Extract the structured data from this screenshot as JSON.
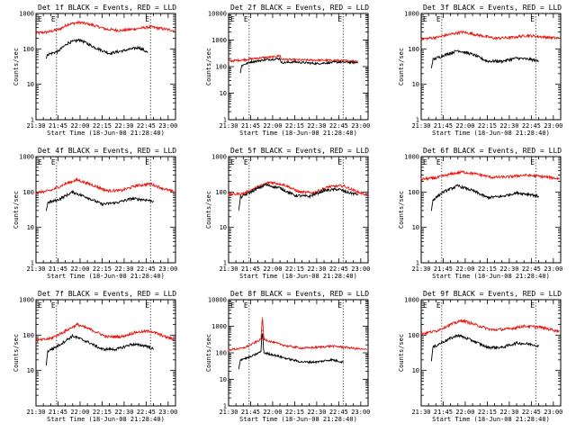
{
  "figure": {
    "xlabel": "Start Time (18-Jun-08 21:28:40)",
    "ylabel": "Counts/sec"
  },
  "colors": {
    "events": "#000000",
    "lld": "#e8130c"
  },
  "chart_data": [
    {
      "type": "line",
      "title": "Det 1f BLACK = Events, RED = LLD",
      "marker": "E",
      "y_log": true,
      "ylim": [
        1,
        1000
      ],
      "yticks": [
        "1",
        "10",
        "100",
        "1000"
      ],
      "xlim": [
        "21:30",
        "23:05"
      ],
      "xticks": [
        "21:30",
        "21:45",
        "22:00",
        "22:15",
        "22:30",
        "22:45",
        "23:00"
      ],
      "vlines": [
        "21:44",
        "22:48"
      ],
      "series": [
        {
          "color": "#e8130c",
          "x": [
            "21:30",
            "21:38",
            "21:46",
            "21:52",
            "22:00",
            "22:08",
            "22:18",
            "22:28",
            "22:38",
            "22:48",
            "22:58",
            "23:04"
          ],
          "y": [
            280,
            300,
            360,
            500,
            560,
            480,
            360,
            330,
            370,
            420,
            360,
            330
          ]
        },
        {
          "color": "#000000",
          "x": [
            "21:37",
            "21:38",
            "21:45",
            "21:52",
            "22:00",
            "22:10",
            "22:20",
            "22:30",
            "22:40",
            "22:46"
          ],
          "y": [
            55,
            70,
            85,
            150,
            180,
            110,
            75,
            90,
            110,
            80
          ]
        }
      ]
    },
    {
      "type": "line",
      "title": "Det 2f BLACK = Events, RED = LLD",
      "marker": "E",
      "y_log": true,
      "ylim": [
        1,
        10000
      ],
      "yticks": [
        "1",
        "10",
        "100",
        "1000",
        "10000"
      ],
      "xlim": [
        "21:30",
        "23:05"
      ],
      "xticks": [
        "21:30",
        "21:45",
        "22:00",
        "22:15",
        "22:30",
        "22:45",
        "23:00"
      ],
      "vlines": [
        "21:44",
        "22:48"
      ],
      "series": [
        {
          "color": "#e8130c",
          "x": [
            "21:30",
            "21:40",
            "21:50",
            "22:00",
            "22:05",
            "22:06",
            "22:15",
            "22:30",
            "22:45",
            "22:58"
          ],
          "y": [
            160,
            180,
            210,
            230,
            260,
            190,
            180,
            175,
            170,
            160
          ]
        },
        {
          "color": "#000000",
          "x": [
            "21:38",
            "21:39",
            "21:45",
            "21:55",
            "22:05",
            "22:06",
            "22:15",
            "22:30",
            "22:45",
            "22:58"
          ],
          "y": [
            60,
            110,
            150,
            180,
            200,
            140,
            150,
            130,
            150,
            140
          ]
        }
      ]
    },
    {
      "type": "line",
      "title": "Det 3f BLACK = Events, RED = LLD",
      "marker": "E",
      "y_log": true,
      "ylim": [
        1,
        1000
      ],
      "yticks": [
        "1",
        "10",
        "100",
        "1000"
      ],
      "xlim": [
        "21:30",
        "23:05"
      ],
      "xticks": [
        "21:30",
        "21:45",
        "22:00",
        "22:15",
        "22:30",
        "22:45",
        "23:00"
      ],
      "vlines": [
        "21:44",
        "22:48"
      ],
      "series": [
        {
          "color": "#e8130c",
          "x": [
            "21:30",
            "21:40",
            "21:50",
            "21:58",
            "22:08",
            "22:20",
            "22:32",
            "22:42",
            "22:52",
            "23:04"
          ],
          "y": [
            190,
            210,
            260,
            300,
            250,
            200,
            210,
            240,
            220,
            200
          ]
        },
        {
          "color": "#000000",
          "x": [
            "21:37",
            "21:38",
            "21:45",
            "21:55",
            "22:05",
            "22:15",
            "22:25",
            "22:35",
            "22:45",
            "22:50"
          ],
          "y": [
            30,
            50,
            65,
            90,
            70,
            45,
            45,
            55,
            50,
            45
          ]
        }
      ]
    },
    {
      "type": "line",
      "title": "Det 4f BLACK = Events, RED = LLD",
      "marker": "E",
      "y_log": true,
      "ylim": [
        1,
        1000
      ],
      "yticks": [
        "1",
        "10",
        "100",
        "1000"
      ],
      "xlim": [
        "21:30",
        "23:05"
      ],
      "xticks": [
        "21:30",
        "21:45",
        "22:00",
        "22:15",
        "22:30",
        "22:45",
        "23:00"
      ],
      "vlines": [
        "21:44",
        "22:48"
      ],
      "series": [
        {
          "color": "#e8130c",
          "x": [
            "21:30",
            "21:40",
            "21:50",
            "21:58",
            "22:08",
            "22:18",
            "22:28",
            "22:38",
            "22:48",
            "22:58",
            "23:04"
          ],
          "y": [
            95,
            110,
            170,
            220,
            160,
            110,
            110,
            150,
            170,
            120,
            100
          ]
        },
        {
          "color": "#000000",
          "x": [
            "21:37",
            "21:38",
            "21:45",
            "21:55",
            "22:05",
            "22:15",
            "22:25",
            "22:35",
            "22:45",
            "22:50"
          ],
          "y": [
            30,
            50,
            60,
            100,
            70,
            45,
            50,
            65,
            60,
            55
          ]
        }
      ]
    },
    {
      "type": "line",
      "title": "Det 5f BLACK = Events, RED = LLD",
      "marker": "E",
      "y_log": true,
      "ylim": [
        1,
        1000
      ],
      "yticks": [
        "1",
        "10",
        "100",
        "1000"
      ],
      "xlim": [
        "21:30",
        "23:05"
      ],
      "xticks": [
        "21:30",
        "21:45",
        "22:00",
        "22:15",
        "22:30",
        "22:45",
        "23:00"
      ],
      "vlines": [
        "21:44",
        "22:48"
      ],
      "series": [
        {
          "color": "#e8130c",
          "x": [
            "21:30",
            "21:40",
            "21:50",
            "21:58",
            "22:08",
            "22:18",
            "22:28",
            "22:38",
            "22:48",
            "22:58",
            "23:04"
          ],
          "y": [
            85,
            90,
            140,
            190,
            160,
            100,
            95,
            140,
            150,
            100,
            85
          ]
        },
        {
          "color": "#000000",
          "x": [
            "21:37",
            "21:38",
            "21:45",
            "21:55",
            "22:05",
            "22:15",
            "22:25",
            "22:35",
            "22:45",
            "22:50",
            "22:58"
          ],
          "y": [
            30,
            70,
            100,
            160,
            130,
            80,
            75,
            110,
            120,
            100,
            85
          ]
        }
      ]
    },
    {
      "type": "line",
      "title": "Det 6f BLACK = Events, RED = LLD",
      "marker": "E",
      "y_log": true,
      "ylim": [
        1,
        1000
      ],
      "yticks": [
        "1",
        "10",
        "100",
        "1000"
      ],
      "xlim": [
        "21:30",
        "23:05"
      ],
      "xticks": [
        "21:30",
        "21:45",
        "22:00",
        "22:15",
        "22:30",
        "22:45",
        "23:00"
      ],
      "vlines": [
        "21:44",
        "22:48"
      ],
      "series": [
        {
          "color": "#e8130c",
          "x": [
            "21:30",
            "21:40",
            "21:50",
            "21:58",
            "22:08",
            "22:18",
            "22:30",
            "22:40",
            "22:50",
            "23:04"
          ],
          "y": [
            230,
            250,
            320,
            370,
            320,
            260,
            270,
            300,
            280,
            240
          ]
        },
        {
          "color": "#000000",
          "x": [
            "21:37",
            "21:38",
            "21:45",
            "21:55",
            "22:05",
            "22:15",
            "22:25",
            "22:35",
            "22:45",
            "22:50"
          ],
          "y": [
            30,
            60,
            100,
            150,
            110,
            70,
            75,
            95,
            85,
            75
          ]
        }
      ]
    },
    {
      "type": "line",
      "title": "Det 7f BLACK = Events, RED = LLD",
      "marker": "E",
      "y_log": true,
      "ylim": [
        1,
        1000
      ],
      "yticks": [
        "10",
        "100",
        "1000"
      ],
      "xlim": [
        "21:30",
        "23:05"
      ],
      "xticks": [
        "21:30",
        "21:45",
        "22:00",
        "22:15",
        "22:30",
        "22:45",
        "23:00"
      ],
      "vlines": [
        "21:44",
        "22:48"
      ],
      "series": [
        {
          "color": "#e8130c",
          "x": [
            "21:30",
            "21:40",
            "21:50",
            "21:58",
            "22:08",
            "22:18",
            "22:28",
            "22:38",
            "22:48",
            "22:58",
            "23:04"
          ],
          "y": [
            70,
            80,
            130,
            200,
            140,
            90,
            90,
            120,
            130,
            90,
            75
          ]
        },
        {
          "color": "#000000",
          "x": [
            "21:37",
            "21:38",
            "21:45",
            "21:55",
            "22:05",
            "22:15",
            "22:25",
            "22:35",
            "22:45",
            "22:50"
          ],
          "y": [
            15,
            35,
            50,
            95,
            65,
            40,
            40,
            55,
            50,
            40
          ]
        }
      ]
    },
    {
      "type": "line",
      "title": "Det 8f BLACK = Events, RED = LLD",
      "marker": "E",
      "y_log": true,
      "ylim": [
        1,
        10000
      ],
      "yticks": [
        "1",
        "10",
        "100",
        "1000",
        "10000"
      ],
      "xlim": [
        "21:30",
        "23:05"
      ],
      "xticks": [
        "21:30",
        "21:45",
        "22:00",
        "22:15",
        "22:30",
        "22:45",
        "23:00"
      ],
      "vlines": [
        "21:44",
        "22:48"
      ],
      "series": [
        {
          "color": "#e8130c",
          "x": [
            "21:30",
            "21:40",
            "21:45",
            "21:52",
            "21:53",
            "21:54",
            "22:00",
            "22:10",
            "22:20",
            "22:30",
            "22:40",
            "22:50",
            "23:04"
          ],
          "y": [
            130,
            150,
            200,
            320,
            2200,
            330,
            250,
            180,
            150,
            160,
            180,
            160,
            130
          ]
        },
        {
          "color": "#000000",
          "x": [
            "21:37",
            "21:38",
            "21:45",
            "21:52",
            "21:53",
            "21:54",
            "22:00",
            "22:10",
            "22:20",
            "22:30",
            "22:40",
            "22:48"
          ],
          "y": [
            25,
            55,
            70,
            110,
            700,
            100,
            85,
            60,
            45,
            45,
            55,
            45
          ]
        }
      ]
    },
    {
      "type": "line",
      "title": "Det 9f BLACK = Events, RED = LLD",
      "marker": "E",
      "y_log": true,
      "ylim": [
        1,
        1000
      ],
      "yticks": [
        "10",
        "100",
        "1000"
      ],
      "xlim": [
        "21:30",
        "23:05"
      ],
      "xticks": [
        "21:30",
        "21:45",
        "22:00",
        "22:15",
        "22:30",
        "22:45",
        "23:00"
      ],
      "vlines": [
        "21:44",
        "22:48"
      ],
      "series": [
        {
          "color": "#e8130c",
          "x": [
            "21:30",
            "21:40",
            "21:50",
            "21:58",
            "22:08",
            "22:18",
            "22:30",
            "22:40",
            "22:50",
            "23:04"
          ],
          "y": [
            110,
            130,
            200,
            260,
            190,
            140,
            150,
            180,
            170,
            130
          ]
        },
        {
          "color": "#000000",
          "x": [
            "21:37",
            "21:38",
            "21:45",
            "21:55",
            "22:05",
            "22:15",
            "22:25",
            "22:35",
            "22:45",
            "22:50"
          ],
          "y": [
            20,
            45,
            65,
            100,
            70,
            45,
            45,
            60,
            55,
            50
          ]
        }
      ]
    }
  ]
}
